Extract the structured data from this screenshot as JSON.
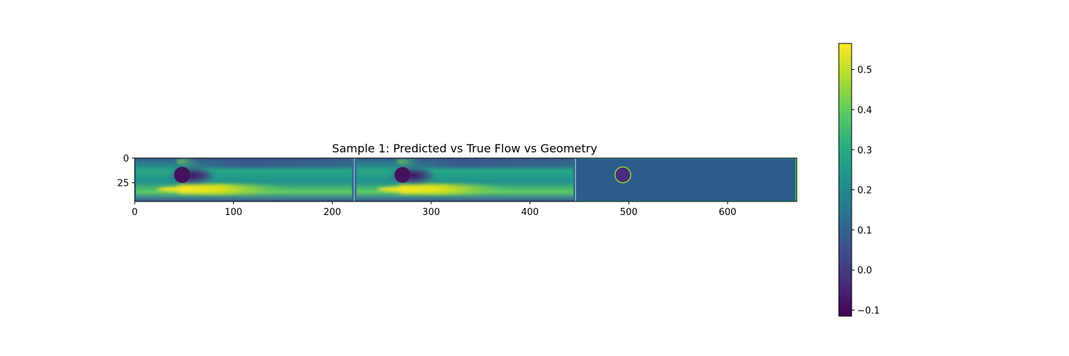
{
  "chart_data": [
    {
      "type": "heatmap",
      "title": "Sample 1: Predicted vs True Flow vs Geometry",
      "xlabel": "",
      "ylabel": "",
      "xlim": [
        0,
        670
      ],
      "ylim": [
        44,
        0
      ],
      "x_ticks": [
        0,
        100,
        200,
        300,
        400,
        500,
        600
      ],
      "y_ticks": [
        0,
        25
      ],
      "grid": false,
      "colormap": "viridis",
      "panels": [
        {
          "name": "Predicted",
          "x_range": [
            0,
            222
          ],
          "obstacle": {
            "cx": 48,
            "cy": 17,
            "r": 8
          }
        },
        {
          "name": "True",
          "x_range": [
            223,
            446
          ],
          "obstacle": {
            "cx": 271,
            "cy": 17,
            "r": 8
          }
        },
        {
          "name": "Geometry",
          "x_range": [
            447,
            670
          ],
          "background_value": 0.115,
          "outline_value": 0.45,
          "obstacle": {
            "cx": 494,
            "cy": 17,
            "r": 8
          }
        }
      ]
    },
    {
      "type": "colorbar",
      "colormap": "viridis",
      "range": [
        -0.115,
        0.565
      ],
      "ticks": [
        -0.1,
        0.0,
        0.1,
        0.2,
        0.3,
        0.4,
        0.5
      ],
      "tick_labels": [
        "−0.1",
        "0.0",
        "0.1",
        "0.2",
        "0.3",
        "0.4",
        "0.5"
      ]
    }
  ]
}
